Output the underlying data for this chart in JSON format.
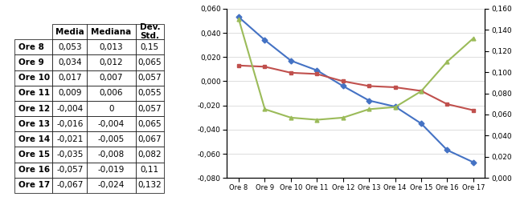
{
  "hours": [
    "Ore 8",
    "Ore 9",
    "Ore 10",
    "Ore 11",
    "Ore 12",
    "Ore 13",
    "Ore 14",
    "Ore 15",
    "Ore 16",
    "Ore 17"
  ],
  "media": [
    0.053,
    0.034,
    0.017,
    0.009,
    -0.004,
    -0.016,
    -0.021,
    -0.035,
    -0.057,
    -0.067
  ],
  "mediana": [
    0.013,
    0.012,
    0.007,
    0.006,
    0.0,
    -0.004,
    -0.005,
    -0.008,
    -0.019,
    -0.024
  ],
  "dev_std": [
    0.15,
    0.065,
    0.057,
    0.055,
    0.057,
    0.065,
    0.067,
    0.082,
    0.11,
    0.132
  ],
  "table_rows": [
    [
      "Ore 8",
      "0,053",
      "0,013",
      "0,15"
    ],
    [
      "Ore 9",
      "0,034",
      "0,012",
      "0,065"
    ],
    [
      "Ore 10",
      "0,017",
      "0,007",
      "0,057"
    ],
    [
      "Ore 11",
      "0,009",
      "0,006",
      "0,055"
    ],
    [
      "Ore 12",
      "-0,004",
      "0",
      "0,057"
    ],
    [
      "Ore 13",
      "-0,016",
      "-0,004",
      "0,065"
    ],
    [
      "Ore 14",
      "-0,021",
      "-0,005",
      "0,067"
    ],
    [
      "Ore 15",
      "-0,035",
      "-0,008",
      "0,082"
    ],
    [
      "Ore 16",
      "-0,057",
      "-0,019",
      "0,11"
    ],
    [
      "Ore 17",
      "-0,067",
      "-0,024",
      "0,132"
    ]
  ],
  "media_color": "#4472C4",
  "mediana_color": "#C0504D",
  "dev_color": "#9BBB59",
  "left_ylim": [
    -0.08,
    0.06
  ],
  "right_ylim": [
    0.0,
    0.16
  ],
  "left_yticks": [
    -0.08,
    -0.06,
    -0.04,
    -0.02,
    0.0,
    0.02,
    0.04,
    0.06
  ],
  "right_yticks": [
    0.0,
    0.02,
    0.04,
    0.06,
    0.08,
    0.1,
    0.12,
    0.14,
    0.16
  ]
}
